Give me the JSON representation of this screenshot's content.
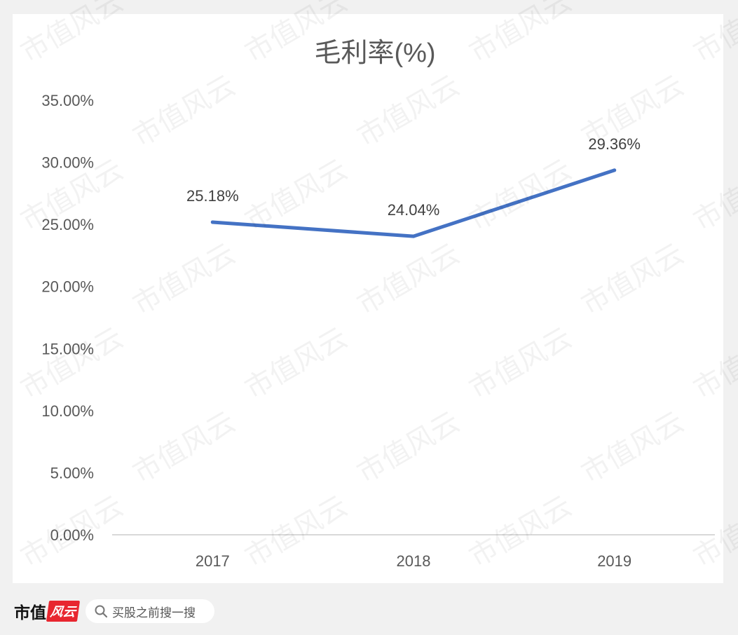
{
  "chart_data": {
    "type": "line",
    "title": "毛利率(%)",
    "categories": [
      "2017",
      "2018",
      "2019"
    ],
    "series": [
      {
        "values": [
          25.18,
          24.04,
          29.36
        ],
        "labels": [
          "25.18%",
          "24.04%",
          "29.36%"
        ],
        "color": "#4472c4"
      }
    ],
    "ylim": [
      0,
      35
    ],
    "yticks": [
      "0.00%",
      "5.00%",
      "10.00%",
      "15.00%",
      "20.00%",
      "25.00%",
      "30.00%",
      "35.00%"
    ],
    "grid": false,
    "legend": "none"
  },
  "footer": {
    "brand_main": "市值",
    "brand_badge": "风云",
    "search_placeholder": "买股之前搜一搜",
    "search_icon": "search-icon"
  },
  "watermark": "市值风云"
}
